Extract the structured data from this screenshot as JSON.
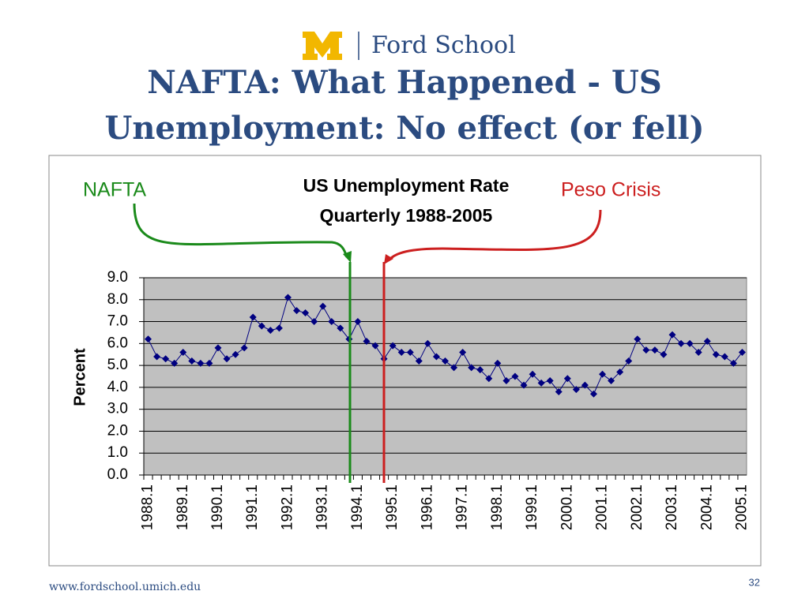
{
  "slide": {
    "logo_text": "Ford School",
    "title_lines": [
      "NAFTA: What Happened - US",
      "Unemployment:  No effect (or fell)"
    ],
    "footer_url": "www.fordschool.umich.edu",
    "page_number": "32"
  },
  "chart_data": {
    "type": "line",
    "title": "US Unemployment Rate",
    "subtitle": "Quarterly 1988-2005",
    "y_label": "Percent",
    "annotations": [
      "NAFTA",
      "Peso Crisis"
    ],
    "categories": [
      "1988.1",
      null,
      null,
      null,
      "1989.1",
      null,
      null,
      null,
      "1990.1",
      null,
      null,
      null,
      "1991.1",
      null,
      null,
      null,
      "1992.1",
      null,
      null,
      null,
      "1993.1",
      null,
      null,
      null,
      "1994.1",
      null,
      null,
      null,
      "1995.1",
      null,
      null,
      null,
      "1996.1",
      null,
      null,
      null,
      "1997.1",
      null,
      null,
      null,
      "1998.1",
      null,
      null,
      null,
      "1999.1",
      null,
      null,
      null,
      "2000.1",
      null,
      null,
      null,
      "2001.1",
      null,
      null,
      null,
      "2002.1",
      null,
      null,
      null,
      "2003.1",
      null,
      null,
      null,
      "2004.1",
      null,
      null,
      null,
      "2005.1"
    ],
    "series": [
      {
        "name": "Unemployment rate",
        "color": "#000080",
        "values": [
          6.2,
          5.4,
          5.3,
          5.1,
          5.6,
          5.2,
          5.1,
          5.1,
          5.8,
          5.3,
          5.5,
          5.8,
          7.2,
          6.8,
          6.6,
          6.7,
          8.1,
          7.5,
          7.4,
          7.0,
          7.7,
          7.0,
          6.7,
          6.2,
          7.0,
          6.1,
          5.9,
          5.3,
          5.9,
          5.6,
          5.6,
          5.2,
          6.0,
          5.4,
          5.2,
          4.9,
          5.6,
          4.9,
          4.8,
          4.4,
          5.1,
          4.3,
          4.5,
          4.1,
          4.6,
          4.2,
          4.3,
          3.8,
          4.4,
          3.9,
          4.1,
          3.7,
          4.6,
          4.3,
          4.7,
          5.2,
          6.2,
          5.7,
          5.7,
          5.5,
          6.4,
          6.0,
          6.0,
          5.6,
          6.1,
          5.5,
          5.4,
          5.1,
          5.6
        ]
      }
    ],
    "ylim": [
      0,
      9
    ],
    "yticks": [
      {
        "value": 0,
        "label": "0.0"
      },
      {
        "value": 1,
        "label": "1.0"
      },
      {
        "value": 2,
        "label": "2.0"
      },
      {
        "value": 3,
        "label": "3.0"
      },
      {
        "value": 4,
        "label": "4.0"
      },
      {
        "value": 5,
        "label": "5.0"
      },
      {
        "value": 6,
        "label": "6.0"
      },
      {
        "value": 7,
        "label": "7.0"
      },
      {
        "value": 8,
        "label": "8.0"
      },
      {
        "value": 9,
        "label": "9.0"
      }
    ],
    "grid": true,
    "plot_background": "#c0c0c0"
  }
}
